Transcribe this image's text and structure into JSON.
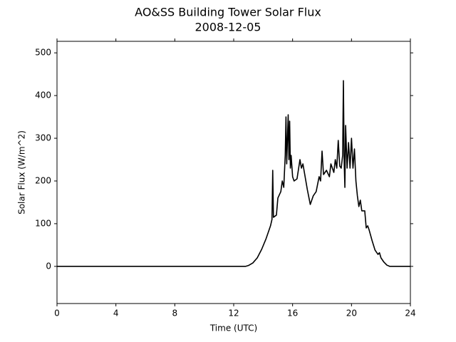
{
  "chart_data": {
    "type": "line",
    "title": "AO&SS Building Tower Solar Flux",
    "subtitle": "2008-12-05",
    "x_label": "Time (UTC)",
    "y_label": "Solar Flux (W/m^2)",
    "x": [
      0,
      12.8,
      13,
      13.3,
      13.6,
      13.9,
      14.2,
      14.5,
      14.6,
      14.65,
      14.7,
      14.9,
      15.0,
      15.2,
      15.3,
      15.4,
      15.5,
      15.55,
      15.6,
      15.7,
      15.75,
      15.8,
      15.85,
      15.9,
      16.0,
      16.1,
      16.3,
      16.5,
      16.6,
      16.7,
      16.8,
      17.0,
      17.2,
      17.4,
      17.6,
      17.8,
      17.9,
      18.0,
      18.1,
      18.3,
      18.5,
      18.6,
      18.8,
      18.9,
      19.0,
      19.1,
      19.2,
      19.3,
      19.4,
      19.45,
      19.5,
      19.55,
      19.6,
      19.7,
      19.8,
      19.9,
      20.0,
      20.1,
      20.2,
      20.3,
      20.4,
      20.5,
      20.6,
      20.7,
      20.9,
      21.0,
      21.1,
      21.2,
      21.4,
      21.6,
      21.8,
      21.9,
      22.0,
      22.2,
      22.4,
      22.6,
      24
    ],
    "series": [
      {
        "name": "Solar Flux",
        "color": "#000000",
        "values": [
          0,
          0,
          2,
          8,
          20,
          40,
          65,
          95,
          110,
          225,
          115,
          120,
          160,
          175,
          200,
          185,
          260,
          350,
          240,
          355,
          250,
          340,
          230,
          260,
          210,
          200,
          205,
          250,
          230,
          240,
          220,
          180,
          145,
          165,
          175,
          210,
          200,
          270,
          215,
          225,
          210,
          240,
          220,
          250,
          230,
          295,
          235,
          230,
          260,
          435,
          250,
          185,
          330,
          230,
          290,
          230,
          300,
          230,
          275,
          200,
          165,
          140,
          155,
          130,
          130,
          90,
          95,
          85,
          60,
          38,
          28,
          32,
          20,
          10,
          3,
          0,
          0
        ]
      }
    ],
    "xlim": [
      0,
      24
    ],
    "xticks": [
      0,
      4,
      8,
      12,
      16,
      20,
      24
    ],
    "ylim": [
      -87,
      527
    ],
    "yticks": [
      0,
      100,
      200,
      300,
      400,
      500
    ],
    "grid": false
  }
}
